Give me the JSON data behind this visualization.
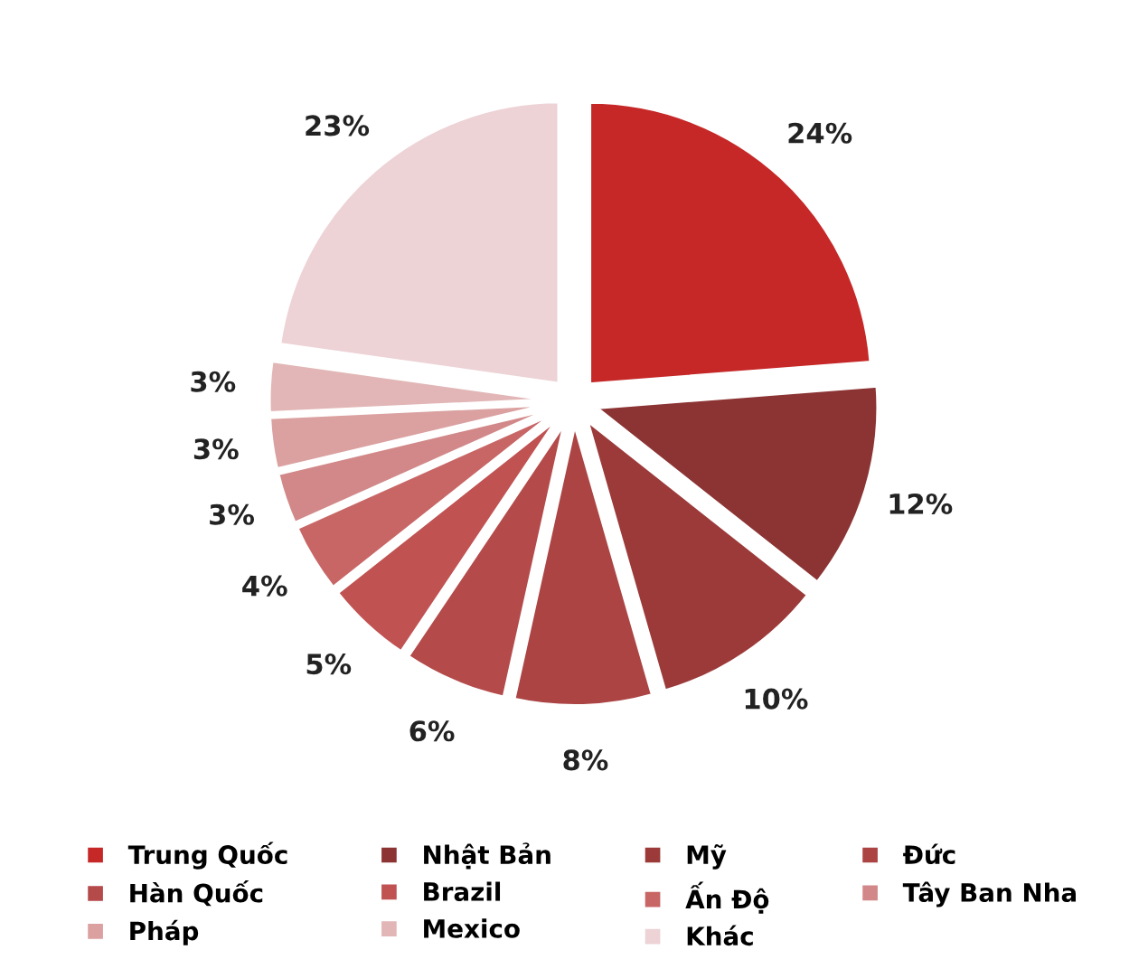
{
  "chart_data": {
    "type": "pie",
    "categories": [
      "Trung Quốc",
      "Nhật Bản",
      "Mỹ",
      "Đức",
      "Hàn Quốc",
      "Brazil",
      "Ấn Độ",
      "Tây Ban Nha",
      "Pháp",
      "Mexico",
      "Khác"
    ],
    "values": [
      24,
      12,
      10,
      8,
      6,
      5,
      4,
      3,
      3,
      3,
      23
    ],
    "value_labels": [
      "24%",
      "12%",
      "10%",
      "8%",
      "6%",
      "5%",
      "4%",
      "3%",
      "3%",
      "3%",
      "23%"
    ],
    "colors": [
      "#c62828",
      "#8c3434",
      "#9c3a3a",
      "#ac4444",
      "#b54a4a",
      "#c05252",
      "#c86666",
      "#d28888",
      "#dba0a0",
      "#e2b6b6",
      "#edd2d6"
    ],
    "legend": "bottom"
  }
}
